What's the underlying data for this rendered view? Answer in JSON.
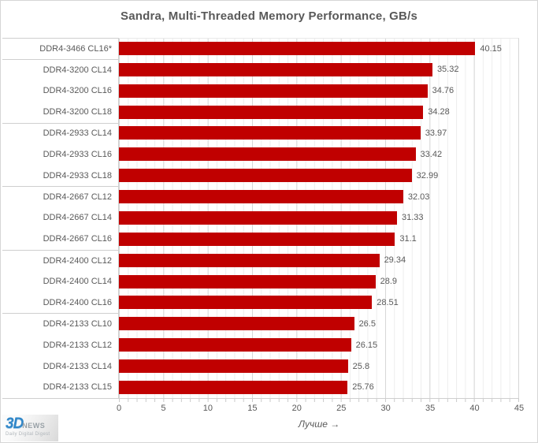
{
  "title": "Sandra, Multi-Threaded Memory Performance, GB/s",
  "chart_data": {
    "type": "bar",
    "orientation": "horizontal",
    "title": "Sandra, Multi-Threaded Memory Performance, GB/s",
    "categories": [
      "DDR4-3466 CL16*",
      "DDR4-3200 CL14",
      "DDR4-3200 CL16",
      "DDR4-3200 CL18",
      "DDR4-2933 CL14",
      "DDR4-2933 CL16",
      "DDR4-2933 CL18",
      "DDR4-2667 CL12",
      "DDR4-2667 CL14",
      "DDR4-2667 CL16",
      "DDR4-2400 CL12",
      "DDR4-2400 CL14",
      "DDR4-2400 CL16",
      "DDR4-2133 CL10",
      "DDR4-2133 CL12",
      "DDR4-2133 CL14",
      "DDR4-2133 CL15"
    ],
    "values": [
      40.15,
      35.32,
      34.76,
      34.28,
      33.97,
      33.42,
      32.99,
      32.03,
      31.33,
      31.1,
      29.34,
      28.9,
      28.51,
      26.5,
      26.15,
      25.8,
      25.76
    ],
    "value_labels": [
      "40.15",
      "35.32",
      "34.76",
      "34.28",
      "33.97",
      "33.42",
      "32.99",
      "32.03",
      "31.33",
      "31.1",
      "29.34",
      "28.9",
      "28.51",
      "26.5",
      "26.15",
      "25.8",
      "25.76"
    ],
    "xlabel": "Лучше →",
    "ylabel": "",
    "xlim": [
      0,
      45
    ],
    "x_ticks": [
      0,
      5,
      10,
      15,
      20,
      25,
      30,
      35,
      40,
      45
    ],
    "x_minor_unit": 1,
    "grid": "vertical major and minor gridlines on",
    "legend": "none",
    "bar_color": "#C00000"
  },
  "colors": {
    "bar": "#C00000",
    "text": "#595959",
    "major_grid": "#D7D7D7",
    "minor_grid": "#EDEDED",
    "axis_line": "#CFCFCF",
    "frame_border": "#D6D6D6",
    "logo_blue": "#2F86C8",
    "logo_gray": "#99A1A7"
  },
  "footer_logo": {
    "brand_3d": "3D",
    "brand_news": "NEWS",
    "tagline": "Daily Digital Digest"
  }
}
